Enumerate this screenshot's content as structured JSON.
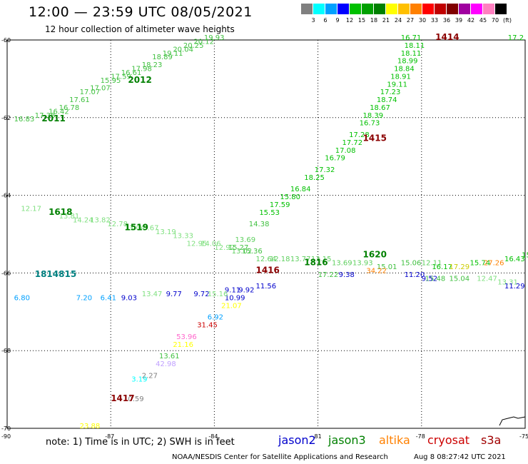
{
  "header": {
    "title": "12:00 — 23:59 UTC 08/05/2021",
    "subtitle": "12 hour collection of altimeter wave heights"
  },
  "legend": {
    "colors": [
      "#808080",
      "#00ffff",
      "#00a0ff",
      "#0000ff",
      "#00c000",
      "#00a000",
      "#008000",
      "#ffff00",
      "#ffc000",
      "#ff8000",
      "#ff0000",
      "#c00000",
      "#800000",
      "#a000a0",
      "#ff00ff",
      "#ff80c0",
      "#000000"
    ],
    "labels": [
      "3",
      "6",
      "9",
      "12",
      "15",
      "18",
      "21",
      "24",
      "27",
      "30",
      "33",
      "36",
      "39",
      "42",
      "45",
      "70"
    ],
    "unit": "(ft)"
  },
  "axes": {
    "lat_labels": [
      "-60",
      "-62",
      "-64",
      "-66",
      "-68",
      "-70"
    ],
    "lon_labels": [
      "-90",
      "-87",
      "-84",
      "-81",
      "-78",
      "-75"
    ]
  },
  "footer": {
    "note": "note: 1) Time is in UTC; 2) SWH is in feet",
    "satellites": [
      {
        "name": "jason2",
        "color": "#0000cc"
      },
      {
        "name": "jason3",
        "color": "#008000"
      },
      {
        "name": "altika",
        "color": "#ff8000"
      },
      {
        "name": "cryosat",
        "color": "#cc0000"
      },
      {
        "name": "s3a",
        "color": "#a00000"
      }
    ],
    "credit": "NOAA/NESDIS Center for Satellite Applications and Research",
    "timestamp": "Aug  8 08:27:42 UTC 2021"
  },
  "map": {
    "lon_range": [
      -90,
      -75
    ],
    "lat_range": [
      -70,
      -60
    ],
    "time_labels": [
      {
        "text": "1414",
        "lon": -77.6,
        "lat": -60.0,
        "color": "#8b0000"
      },
      {
        "text": "1415",
        "lon": -79.7,
        "lat": -62.6,
        "color": "#8b0000"
      },
      {
        "text": "1416",
        "lon": -82.8,
        "lat": -66.0,
        "color": "#8b0000"
      },
      {
        "text": "1417",
        "lon": -87.0,
        "lat": -69.3,
        "color": "#8b0000"
      },
      {
        "text": "2011",
        "lon": -89.0,
        "lat": -62.1,
        "color": "#008000"
      },
      {
        "text": "2012",
        "lon": -86.5,
        "lat": -61.1,
        "color": "#008000"
      },
      {
        "text": "1618",
        "lon": -88.8,
        "lat": -64.5,
        "color": "#008000"
      },
      {
        "text": "1519",
        "lon": -86.6,
        "lat": -64.9,
        "color": "#008000"
      },
      {
        "text": "1620",
        "lon": -79.7,
        "lat": -65.6,
        "color": "#008000"
      },
      {
        "text": "1816",
        "lon": -81.4,
        "lat": -65.8,
        "color": "#008000"
      },
      {
        "text": "1814815",
        "lon": -89.2,
        "lat": -66.1,
        "color": "#008080"
      }
    ],
    "values": [
      {
        "text": "19.93",
        "lon": -84.3,
        "lat": -60.0,
        "color": "#40c040"
      },
      {
        "text": "20.12",
        "lon": -84.6,
        "lat": -60.1,
        "color": "#40c040"
      },
      {
        "text": "20.25",
        "lon": -84.9,
        "lat": -60.2,
        "color": "#40c040"
      },
      {
        "text": "20.04",
        "lon": -85.2,
        "lat": -60.3,
        "color": "#40c040"
      },
      {
        "text": "19.11",
        "lon": -85.5,
        "lat": -60.4,
        "color": "#40c040"
      },
      {
        "text": "18.89",
        "lon": -85.8,
        "lat": -60.5,
        "color": "#40c040"
      },
      {
        "text": "18.23",
        "lon": -86.1,
        "lat": -60.7,
        "color": "#40c040"
      },
      {
        "text": "17.98",
        "lon": -86.4,
        "lat": -60.8,
        "color": "#40c040"
      },
      {
        "text": "16.61",
        "lon": -86.7,
        "lat": -60.9,
        "color": "#40c040"
      },
      {
        "text": "17.59",
        "lon": -87.0,
        "lat": -61.0,
        "color": "#40c040"
      },
      {
        "text": "15.95",
        "lon": -87.3,
        "lat": -61.1,
        "color": "#40c040"
      },
      {
        "text": "17.07",
        "lon": -87.6,
        "lat": -61.3,
        "color": "#40c040"
      },
      {
        "text": "17.07",
        "lon": -87.9,
        "lat": -61.4,
        "color": "#40c040"
      },
      {
        "text": "17.61",
        "lon": -88.2,
        "lat": -61.6,
        "color": "#40c040"
      },
      {
        "text": "16.78",
        "lon": -88.5,
        "lat": -61.8,
        "color": "#40c040"
      },
      {
        "text": "16.42",
        "lon": -88.8,
        "lat": -61.9,
        "color": "#40c040"
      },
      {
        "text": "17.38",
        "lon": -89.2,
        "lat": -62.0,
        "color": "#40c040"
      },
      {
        "text": "16.83",
        "lon": -89.8,
        "lat": -62.1,
        "color": "#40c040"
      },
      {
        "text": "16.71",
        "lon": -78.6,
        "lat": -60.0,
        "color": "#00c000"
      },
      {
        "text": "18.11",
        "lon": -78.5,
        "lat": -60.2,
        "color": "#00c000"
      },
      {
        "text": "18.11",
        "lon": -78.6,
        "lat": -60.4,
        "color": "#00c000"
      },
      {
        "text": "18.99",
        "lon": -78.7,
        "lat": -60.6,
        "color": "#00c000"
      },
      {
        "text": "18.84",
        "lon": -78.8,
        "lat": -60.8,
        "color": "#00c000"
      },
      {
        "text": "18.91",
        "lon": -78.9,
        "lat": -61.0,
        "color": "#00c000"
      },
      {
        "text": "19.11",
        "lon": -79.0,
        "lat": -61.2,
        "color": "#00c000"
      },
      {
        "text": "17.23",
        "lon": -79.2,
        "lat": -61.4,
        "color": "#00c000"
      },
      {
        "text": "18.74",
        "lon": -79.3,
        "lat": -61.6,
        "color": "#00c000"
      },
      {
        "text": "18.67",
        "lon": -79.5,
        "lat": -61.8,
        "color": "#00c000"
      },
      {
        "text": "18.39",
        "lon": -79.7,
        "lat": -62.0,
        "color": "#00c000"
      },
      {
        "text": "16.73",
        "lon": -79.8,
        "lat": -62.2,
        "color": "#00c000"
      },
      {
        "text": "17.28",
        "lon": -80.1,
        "lat": -62.5,
        "color": "#00c000"
      },
      {
        "text": "17.72",
        "lon": -80.3,
        "lat": -62.7,
        "color": "#00c000"
      },
      {
        "text": "17.08",
        "lon": -80.5,
        "lat": -62.9,
        "color": "#00c000"
      },
      {
        "text": "16.79",
        "lon": -80.8,
        "lat": -63.1,
        "color": "#00c000"
      },
      {
        "text": "17.32",
        "lon": -81.1,
        "lat": -63.4,
        "color": "#00c000"
      },
      {
        "text": "18.25",
        "lon": -81.4,
        "lat": -63.6,
        "color": "#00c000"
      },
      {
        "text": "16.84",
        "lon": -81.8,
        "lat": -63.9,
        "color": "#00c000"
      },
      {
        "text": "15.80",
        "lon": -82.1,
        "lat": -64.1,
        "color": "#00c000"
      },
      {
        "text": "17.59",
        "lon": -82.4,
        "lat": -64.3,
        "color": "#00c000"
      },
      {
        "text": "15.53",
        "lon": -82.7,
        "lat": -64.5,
        "color": "#00c000"
      },
      {
        "text": "14.38",
        "lon": -83.0,
        "lat": -64.8,
        "color": "#40c040"
      },
      {
        "text": "13.69",
        "lon": -83.4,
        "lat": -65.2,
        "color": "#60d060"
      },
      {
        "text": "13.02",
        "lon": -83.5,
        "lat": -65.5,
        "color": "#60d060"
      },
      {
        "text": "12.17",
        "lon": -89.6,
        "lat": -64.4,
        "color": "#80e080"
      },
      {
        "text": "13.81",
        "lon": -88.5,
        "lat": -64.6,
        "color": "#80e080"
      },
      {
        "text": "14.24",
        "lon": -88.1,
        "lat": -64.7,
        "color": "#80e080"
      },
      {
        "text": "13.82",
        "lon": -87.6,
        "lat": -64.7,
        "color": "#80e080"
      },
      {
        "text": "12.78",
        "lon": -87.1,
        "lat": -64.8,
        "color": "#80e080"
      },
      {
        "text": "13.04",
        "lon": -86.6,
        "lat": -64.9,
        "color": "#80e080"
      },
      {
        "text": "13.67",
        "lon": -86.2,
        "lat": -64.9,
        "color": "#80e080"
      },
      {
        "text": "13.19",
        "lon": -85.7,
        "lat": -65.0,
        "color": "#80e080"
      },
      {
        "text": "13.33",
        "lon": -85.2,
        "lat": -65.1,
        "color": "#80e080"
      },
      {
        "text": "12.95",
        "lon": -84.8,
        "lat": -65.3,
        "color": "#80e080"
      },
      {
        "text": "14.06",
        "lon": -84.4,
        "lat": -65.3,
        "color": "#80e080"
      },
      {
        "text": "12.92",
        "lon": -84.0,
        "lat": -65.4,
        "color": "#80e080"
      },
      {
        "text": "15.27",
        "lon": -83.6,
        "lat": -65.4,
        "color": "#40c040"
      },
      {
        "text": "15.36",
        "lon": -83.2,
        "lat": -65.5,
        "color": "#40c040"
      },
      {
        "text": "12.64",
        "lon": -82.8,
        "lat": -65.7,
        "color": "#60d060"
      },
      {
        "text": "12.18",
        "lon": -82.4,
        "lat": -65.7,
        "color": "#60d060"
      },
      {
        "text": "13.77",
        "lon": -81.8,
        "lat": -65.7,
        "color": "#60d060"
      },
      {
        "text": "13.15",
        "lon": -81.2,
        "lat": -65.7,
        "color": "#60d060"
      },
      {
        "text": "13.69",
        "lon": -80.6,
        "lat": -65.8,
        "color": "#60d060"
      },
      {
        "text": "13.93",
        "lon": -80.0,
        "lat": -65.8,
        "color": "#60d060"
      },
      {
        "text": "15.01",
        "lon": -79.3,
        "lat": -65.9,
        "color": "#40c040"
      },
      {
        "text": "15.06",
        "lon": -78.6,
        "lat": -65.8,
        "color": "#40c040"
      },
      {
        "text": "12.11",
        "lon": -78.0,
        "lat": -65.8,
        "color": "#60d060"
      },
      {
        "text": "16.17",
        "lon": -77.7,
        "lat": -65.9,
        "color": "#00c000"
      },
      {
        "text": "15.74",
        "lon": -76.6,
        "lat": -65.8,
        "color": "#00c000"
      },
      {
        "text": "16.43",
        "lon": -75.6,
        "lat": -65.7,
        "color": "#00c000"
      },
      {
        "text": "15.9",
        "lon": -75.1,
        "lat": -65.6,
        "color": "#00c000"
      },
      {
        "text": "17.22",
        "lon": -81.0,
        "lat": -66.1,
        "color": "#40c040"
      },
      {
        "text": "15.48",
        "lon": -77.9,
        "lat": -66.2,
        "color": "#40c040"
      },
      {
        "text": "15.04",
        "lon": -77.2,
        "lat": -66.2,
        "color": "#40c040"
      },
      {
        "text": "12.47",
        "lon": -76.4,
        "lat": -66.2,
        "color": "#80e080"
      },
      {
        "text": "13.31",
        "lon": -75.8,
        "lat": -66.3,
        "color": "#80e080"
      },
      {
        "text": "17.2",
        "lon": -75.5,
        "lat": -60.0,
        "color": "#00c000"
      },
      {
        "text": "17.29",
        "lon": -77.2,
        "lat": -65.9,
        "color": "#cccc00"
      },
      {
        "text": "27.26",
        "lon": -76.2,
        "lat": -65.8,
        "color": "#ff8000"
      },
      {
        "text": "34.22",
        "lon": -79.6,
        "lat": -66.0,
        "color": "#ff8000"
      },
      {
        "text": "9.38",
        "lon": -80.4,
        "lat": -66.1,
        "color": "#0000cc"
      },
      {
        "text": "11.20",
        "lon": -78.5,
        "lat": -66.1,
        "color": "#0000cc"
      },
      {
        "text": "9.52",
        "lon": -78.0,
        "lat": -66.2,
        "color": "#0000cc"
      },
      {
        "text": "11.29",
        "lon": -75.6,
        "lat": -66.4,
        "color": "#0000cc"
      },
      {
        "text": "9.11",
        "lon": -83.7,
        "lat": -66.5,
        "color": "#0000cc"
      },
      {
        "text": "9.92",
        "lon": -83.3,
        "lat": -66.5,
        "color": "#0000cc"
      },
      {
        "text": "11.56",
        "lon": -82.8,
        "lat": -66.4,
        "color": "#0000cc"
      },
      {
        "text": "10.99",
        "lon": -83.7,
        "lat": -66.7,
        "color": "#0000cc"
      },
      {
        "text": "9.72",
        "lon": -84.6,
        "lat": -66.6,
        "color": "#0000cc"
      },
      {
        "text": "9.77",
        "lon": -85.4,
        "lat": -66.6,
        "color": "#0000cc"
      },
      {
        "text": "9.03",
        "lon": -86.7,
        "lat": -66.7,
        "color": "#0000cc"
      },
      {
        "text": "13.47",
        "lon": -86.1,
        "lat": -66.6,
        "color": "#80e080"
      },
      {
        "text": "15.16",
        "lon": -84.2,
        "lat": -66.6,
        "color": "#80e080"
      },
      {
        "text": "6.41",
        "lon": -87.3,
        "lat": -66.7,
        "color": "#00a0ff"
      },
      {
        "text": "7.20",
        "lon": -88.0,
        "lat": -66.7,
        "color": "#00a0ff"
      },
      {
        "text": "6.80",
        "lon": -89.8,
        "lat": -66.7,
        "color": "#00a0ff"
      },
      {
        "text": "21.07",
        "lon": -83.8,
        "lat": -66.9,
        "color": "#ffff00"
      },
      {
        "text": "6.92",
        "lon": -84.2,
        "lat": -67.2,
        "color": "#00a0ff"
      },
      {
        "text": "31.45",
        "lon": -84.5,
        "lat": -67.4,
        "color": "#cc0000"
      },
      {
        "text": "53.96",
        "lon": -85.1,
        "lat": -67.7,
        "color": "#ff66cc"
      },
      {
        "text": "21.16",
        "lon": -85.2,
        "lat": -67.9,
        "color": "#ffff00"
      },
      {
        "text": "13.61",
        "lon": -85.6,
        "lat": -68.2,
        "color": "#40c040"
      },
      {
        "text": "42.98",
        "lon": -85.7,
        "lat": -68.4,
        "color": "#c0a0ff"
      },
      {
        "text": "2.27",
        "lon": -86.1,
        "lat": -68.7,
        "color": "#808080"
      },
      {
        "text": "3.19",
        "lon": -86.4,
        "lat": -68.8,
        "color": "#00ffff"
      },
      {
        "text": "0.59",
        "lon": -86.5,
        "lat": -69.3,
        "color": "#808080"
      },
      {
        "text": "23.88",
        "lon": -87.9,
        "lat": -70.0,
        "color": "#ffff00"
      }
    ]
  }
}
